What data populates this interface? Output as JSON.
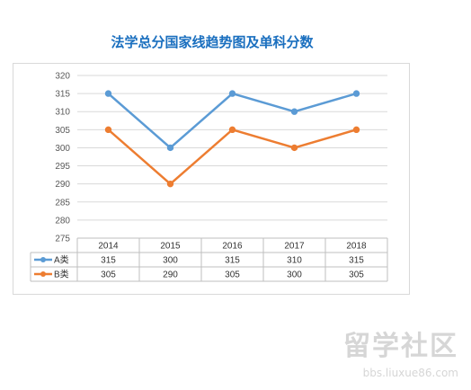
{
  "chart_data": {
    "type": "line",
    "title": "法学总分国家线趋势图及单科分数",
    "categories": [
      "2014",
      "2015",
      "2016",
      "2017",
      "2018"
    ],
    "series": [
      {
        "name": "A类",
        "values": [
          315,
          300,
          315,
          310,
          315
        ],
        "color": "#5b9bd5"
      },
      {
        "name": "B类",
        "values": [
          305,
          290,
          305,
          300,
          305
        ],
        "color": "#ed7d31"
      }
    ],
    "ylim": [
      275,
      320
    ],
    "yticks": [
      275,
      280,
      285,
      290,
      295,
      300,
      305,
      310,
      315,
      320
    ],
    "grid": true,
    "legend": "data-table",
    "xlabel": "",
    "ylabel": ""
  },
  "watermark": {
    "text": "留学社区",
    "url": "bbs.liuxue86.com"
  }
}
